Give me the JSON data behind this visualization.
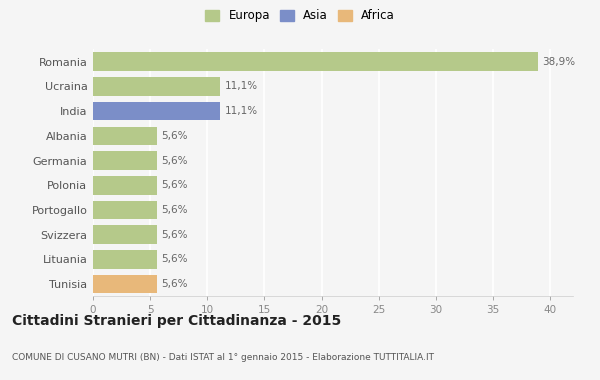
{
  "categories": [
    "Romania",
    "Ucraina",
    "India",
    "Albania",
    "Germania",
    "Polonia",
    "Portogallo",
    "Svizzera",
    "Lituania",
    "Tunisia"
  ],
  "values": [
    38.9,
    11.1,
    11.1,
    5.6,
    5.6,
    5.6,
    5.6,
    5.6,
    5.6,
    5.6
  ],
  "labels": [
    "38,9%",
    "11,1%",
    "11,1%",
    "5,6%",
    "5,6%",
    "5,6%",
    "5,6%",
    "5,6%",
    "5,6%",
    "5,6%"
  ],
  "colors": [
    "#b5c98a",
    "#b5c98a",
    "#7b8ec8",
    "#b5c98a",
    "#b5c98a",
    "#b5c98a",
    "#b5c98a",
    "#b5c98a",
    "#b5c98a",
    "#e8b87a"
  ],
  "legend_labels": [
    "Europa",
    "Asia",
    "Africa"
  ],
  "legend_colors": [
    "#b5c98a",
    "#7b8ec8",
    "#e8b87a"
  ],
  "title": "Cittadini Stranieri per Cittadinanza - 2015",
  "subtitle": "COMUNE DI CUSANO MUTRI (BN) - Dati ISTAT al 1° gennaio 2015 - Elaborazione TUTTITALIA.IT",
  "xlim": [
    0,
    42
  ],
  "xticks": [
    0,
    5,
    10,
    15,
    20,
    25,
    30,
    35,
    40
  ],
  "bg_color": "#f5f5f5",
  "grid_color": "#ffffff",
  "bar_height": 0.75
}
